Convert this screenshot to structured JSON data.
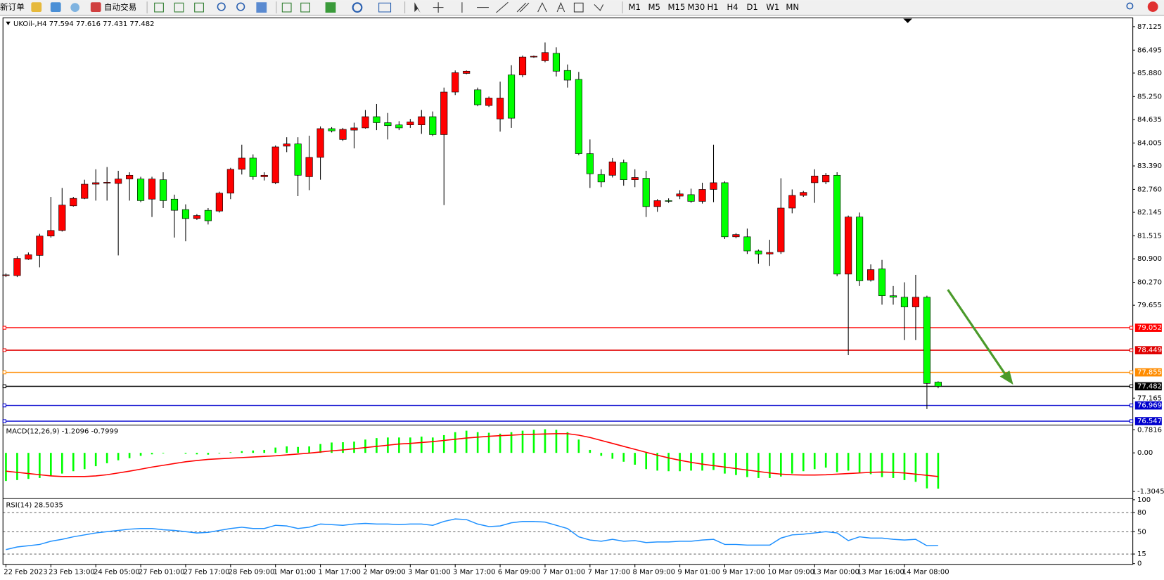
{
  "toolbar": {
    "new_order": "新订单",
    "auto_trade": "自动交易",
    "timeframes": [
      "M1",
      "M5",
      "M15",
      "M30",
      "H1",
      "H4",
      "D1",
      "W1",
      "MN"
    ]
  },
  "chart_data": [
    {
      "type": "candlestick",
      "title": "UKOil-,H4",
      "up_color": "#ff0000",
      "down_color": "#00ff00",
      "categories": [
        "22 Feb 2023",
        null,
        null,
        null,
        "23 Feb 13:00",
        null,
        null,
        null,
        "24 Feb 05:00",
        null,
        null,
        null,
        "27 Feb 01:00",
        null,
        null,
        null,
        "27 Feb 17:00",
        null,
        null,
        null,
        "28 Feb 09:00",
        null,
        null,
        null,
        "1 Mar 01:00",
        null,
        null,
        null,
        "1 Mar 17:00",
        null,
        null,
        null,
        "2 Mar 09:00",
        null,
        null,
        null,
        "3 Mar 01:00",
        null,
        null,
        null,
        "3 Mar 17:00",
        null,
        null,
        null,
        "6 Mar 09:00",
        null,
        null,
        null,
        "7 Mar 01:00",
        null,
        null,
        null,
        "7 Mar 17:00",
        null,
        null,
        null,
        "8 Mar 09:00",
        null,
        null,
        null,
        "9 Mar 01:00",
        null,
        null,
        null,
        "9 Mar 17:00",
        null,
        null,
        null,
        "10 Mar 09:00",
        null,
        null,
        null,
        "13 Mar 00:00",
        null,
        null,
        null,
        "13 Mar 16:00",
        null,
        null,
        null,
        "14 Mar 08:00",
        null,
        null,
        null
      ],
      "open": [
        80.45,
        80.45,
        80.89,
        80.99,
        81.51,
        81.66,
        82.32,
        82.52,
        82.9,
        82.94,
        82.92,
        83.04,
        83.04,
        82.5,
        83.02,
        82.5,
        82.22,
        81.98,
        82.2,
        82.18,
        82.66,
        83.3,
        83.6,
        83.1,
        82.94,
        83.92,
        83.98,
        83.1,
        83.62,
        84.39,
        84.1,
        84.35,
        84.41,
        84.71,
        84.55,
        84.49,
        84.49,
        84.49,
        84.71,
        84.23,
        85.37,
        85.87,
        85.43,
        85.01,
        84.65,
        85.83,
        85.83,
        86.31,
        86.21,
        86.41,
        85.95,
        85.71,
        83.72,
        83.16,
        83.14,
        83.48,
        83.02,
        83.06,
        82.3,
        82.46,
        82.58,
        82.62,
        82.44,
        82.76,
        82.94,
        81.49,
        81.49,
        81.11,
        81.03,
        81.09,
        82.26,
        82.6,
        82.94,
        82.96,
        83.14,
        80.49,
        82.02,
        80.33,
        80.63,
        79.91,
        79.87,
        79.61,
        79.87,
        77.594
      ],
      "high": [
        80.51,
        80.97,
        81.07,
        81.57,
        82.56,
        82.8,
        82.56,
        83.02,
        83.3,
        83.36,
        83.26,
        83.22,
        83.1,
        83.1,
        83.22,
        82.62,
        82.36,
        82.1,
        82.26,
        82.7,
        83.34,
        83.96,
        83.7,
        83.22,
        83.94,
        84.16,
        84.16,
        84.2,
        84.45,
        84.43,
        84.41,
        84.55,
        84.89,
        85.05,
        84.81,
        84.59,
        84.65,
        84.89,
        84.85,
        85.49,
        85.95,
        85.95,
        85.49,
        85.25,
        85.65,
        86.09,
        86.35,
        86.35,
        86.7,
        86.57,
        86.11,
        85.91,
        84.1,
        83.3,
        83.6,
        83.56,
        83.3,
        83.26,
        82.5,
        82.52,
        82.74,
        82.78,
        82.94,
        83.96,
        82.98,
        81.59,
        81.71,
        81.15,
        81.41,
        83.06,
        82.76,
        82.72,
        83.3,
        83.2,
        83.22,
        82.06,
        82.14,
        80.75,
        80.87,
        80.17,
        80.27,
        80.47,
        79.91,
        77.616
      ],
      "low": [
        80.41,
        80.41,
        80.87,
        80.67,
        81.47,
        81.63,
        82.3,
        82.5,
        82.46,
        82.46,
        80.99,
        82.46,
        82.42,
        82.02,
        82.26,
        81.47,
        81.37,
        81.94,
        81.82,
        82.14,
        82.5,
        83.16,
        83.02,
        83.0,
        82.9,
        83.76,
        82.58,
        82.74,
        83.02,
        84.29,
        84.06,
        83.86,
        84.39,
        84.35,
        84.1,
        84.35,
        84.41,
        84.25,
        84.19,
        82.34,
        85.29,
        85.85,
        84.99,
        84.97,
        84.31,
        84.41,
        85.77,
        86.29,
        86.17,
        85.79,
        85.49,
        83.68,
        82.8,
        82.82,
        83.08,
        82.86,
        82.82,
        82.02,
        82.16,
        82.4,
        82.5,
        82.4,
        82.38,
        82.42,
        81.43,
        81.45,
        81.03,
        80.77,
        80.71,
        81.03,
        82.12,
        82.56,
        82.4,
        82.9,
        80.43,
        78.32,
        80.17,
        80.29,
        79.67,
        79.67,
        78.72,
        78.72,
        76.87,
        77.431
      ],
      "close": [
        80.47,
        80.91,
        81.01,
        81.51,
        81.66,
        82.34,
        82.52,
        82.9,
        82.94,
        82.95,
        83.04,
        83.14,
        82.46,
        83.04,
        82.46,
        82.2,
        81.98,
        82.06,
        81.92,
        82.66,
        83.3,
        83.6,
        83.1,
        83.14,
        83.9,
        83.98,
        83.14,
        83.62,
        84.39,
        84.33,
        84.37,
        84.41,
        84.71,
        84.55,
        84.47,
        84.41,
        84.57,
        84.71,
        84.23,
        85.37,
        85.89,
        85.93,
        85.03,
        85.21,
        85.21,
        84.67,
        86.31,
        86.33,
        86.43,
        85.93,
        85.69,
        83.72,
        83.18,
        82.96,
        83.5,
        83.02,
        83.08,
        82.3,
        82.46,
        82.46,
        82.64,
        82.44,
        82.76,
        82.94,
        81.49,
        81.55,
        81.11,
        81.03,
        81.07,
        82.26,
        82.6,
        82.68,
        83.12,
        83.14,
        80.49,
        82.02,
        80.31,
        80.61,
        79.91,
        79.87,
        79.61,
        79.87,
        77.56,
        77.482
      ],
      "levels": [
        {
          "value": 79.052,
          "color": "#ff0000"
        },
        {
          "value": 78.449,
          "color": "#e00000"
        },
        {
          "value": 77.855,
          "color": "#ff8c00"
        },
        {
          "value": 77.482,
          "color": "#000000"
        },
        {
          "value": 76.969,
          "color": "#0000cd"
        },
        {
          "value": 76.547,
          "color": "#0000cd"
        }
      ],
      "ylim": [
        76.49,
        87.34
      ],
      "yticks": [
        87.125,
        86.495,
        {
          "value": 85.88,
          "label": "85.880"
        },
        {
          "value": 85.25,
          "label": "85.250"
        },
        84.635,
        84.005,
        {
          "value": 83.39,
          "label": "83.390"
        },
        {
          "value": 82.76,
          "label": "82.760"
        },
        82.145,
        81.515,
        {
          "value": 80.9,
          "label": "80.900"
        },
        {
          "value": 80.27,
          "label": "80.270"
        },
        79.655,
        77.165
      ]
    },
    {
      "type": "macd",
      "title": "MACD(12,26,9)",
      "series": [
        {
          "color": "#00ff00",
          "values": [
            -0.95,
            -0.92,
            -0.88,
            -0.85,
            -0.78,
            -0.7,
            -0.62,
            -0.55,
            -0.45,
            -0.35,
            -0.25,
            -0.18,
            -0.1,
            -0.05,
            -0.02,
            0.0,
            -0.03,
            -0.05,
            -0.06,
            -0.02,
            0.02,
            0.06,
            0.08,
            0.1,
            0.18,
            0.22,
            0.2,
            0.22,
            0.3,
            0.35,
            0.36,
            0.38,
            0.45,
            0.5,
            0.52,
            0.52,
            0.52,
            0.55,
            0.52,
            0.6,
            0.7,
            0.75,
            0.7,
            0.68,
            0.65,
            0.7,
            0.75,
            0.78,
            0.8,
            0.78,
            0.7,
            0.45,
            0.1,
            -0.1,
            -0.2,
            -0.3,
            -0.4,
            -0.55,
            -0.6,
            -0.62,
            -0.62,
            -0.6,
            -0.6,
            -0.58,
            -0.7,
            -0.75,
            -0.82,
            -0.85,
            -0.85,
            -0.8,
            -0.7,
            -0.62,
            -0.55,
            -0.5,
            -0.65,
            -0.6,
            -0.68,
            -0.72,
            -0.82,
            -0.85,
            -0.92,
            -0.98,
            -1.2,
            -1.2096
          ]
        },
        {
          "color": "#ff0000",
          "values": [
            -0.62,
            -0.66,
            -0.7,
            -0.74,
            -0.78,
            -0.8,
            -0.8,
            -0.8,
            -0.78,
            -0.74,
            -0.68,
            -0.62,
            -0.55,
            -0.48,
            -0.42,
            -0.36,
            -0.3,
            -0.26,
            -0.22,
            -0.2,
            -0.18,
            -0.16,
            -0.14,
            -0.12,
            -0.1,
            -0.07,
            -0.04,
            -0.01,
            0.03,
            0.07,
            0.1,
            0.14,
            0.18,
            0.22,
            0.26,
            0.3,
            0.32,
            0.35,
            0.38,
            0.42,
            0.46,
            0.5,
            0.53,
            0.56,
            0.58,
            0.6,
            0.62,
            0.63,
            0.64,
            0.65,
            0.65,
            0.6,
            0.52,
            0.42,
            0.32,
            0.22,
            0.12,
            0.02,
            -0.08,
            -0.17,
            -0.25,
            -0.32,
            -0.38,
            -0.43,
            -0.48,
            -0.53,
            -0.58,
            -0.63,
            -0.68,
            -0.72,
            -0.74,
            -0.75,
            -0.75,
            -0.74,
            -0.72,
            -0.7,
            -0.68,
            -0.66,
            -0.65,
            -0.66,
            -0.68,
            -0.72,
            -0.76,
            -0.7999
          ]
        }
      ],
      "ylim": [
        -1.51,
        0.9
      ],
      "yticks": [
        0.7816,
        {
          "value": 0,
          "label": "0.00"
        },
        -1.3045
      ]
    },
    {
      "type": "line",
      "title": "RSI(14)",
      "series": [
        {
          "color": "#1e90ff",
          "values": [
            22,
            26,
            28,
            30,
            35,
            38,
            42,
            45,
            48,
            50,
            52,
            54,
            55,
            55,
            53,
            52,
            50,
            48,
            49,
            52,
            55,
            57,
            55,
            55,
            60,
            59,
            55,
            57,
            62,
            61,
            60,
            62,
            63,
            62,
            62,
            61,
            62,
            62,
            60,
            66,
            70,
            69,
            62,
            58,
            59,
            64,
            66,
            66,
            65,
            60,
            55,
            42,
            37,
            35,
            38,
            35,
            36,
            33,
            34,
            34,
            35,
            35,
            37,
            38,
            30,
            30,
            29,
            29,
            29,
            40,
            45,
            46,
            48,
            50,
            48,
            36,
            42,
            40,
            40,
            38,
            37,
            38,
            28,
            28.5035
          ]
        }
      ],
      "ylim": [
        0,
        100
      ],
      "yticks": [
        100,
        80,
        50,
        15,
        0
      ]
    }
  ]
}
